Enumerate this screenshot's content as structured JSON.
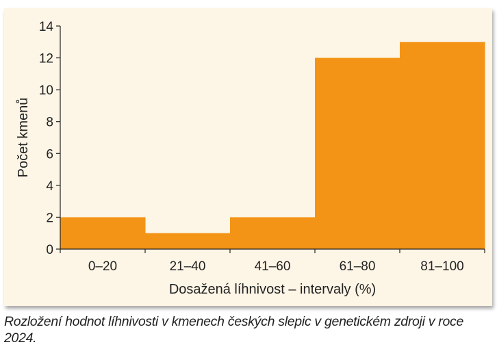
{
  "chart_data": {
    "type": "bar",
    "categories": [
      "0–20",
      "21–40",
      "41–60",
      "61–80",
      "81–100"
    ],
    "values": [
      2,
      1,
      2,
      12,
      13
    ],
    "xlabel": "Dosažená líhnivost – intervaly (%)",
    "ylabel": "Počet kmenů",
    "ylim": [
      0,
      14
    ],
    "yticks": [
      0,
      2,
      4,
      6,
      8,
      10,
      12,
      14
    ],
    "grid": false,
    "bar_color": "#f39416",
    "background_color": "#fdf5e6"
  },
  "caption": "Rozložení hodnot líhnivosti v kmenech českých slepic v genetickém zdroji v roce 2024."
}
